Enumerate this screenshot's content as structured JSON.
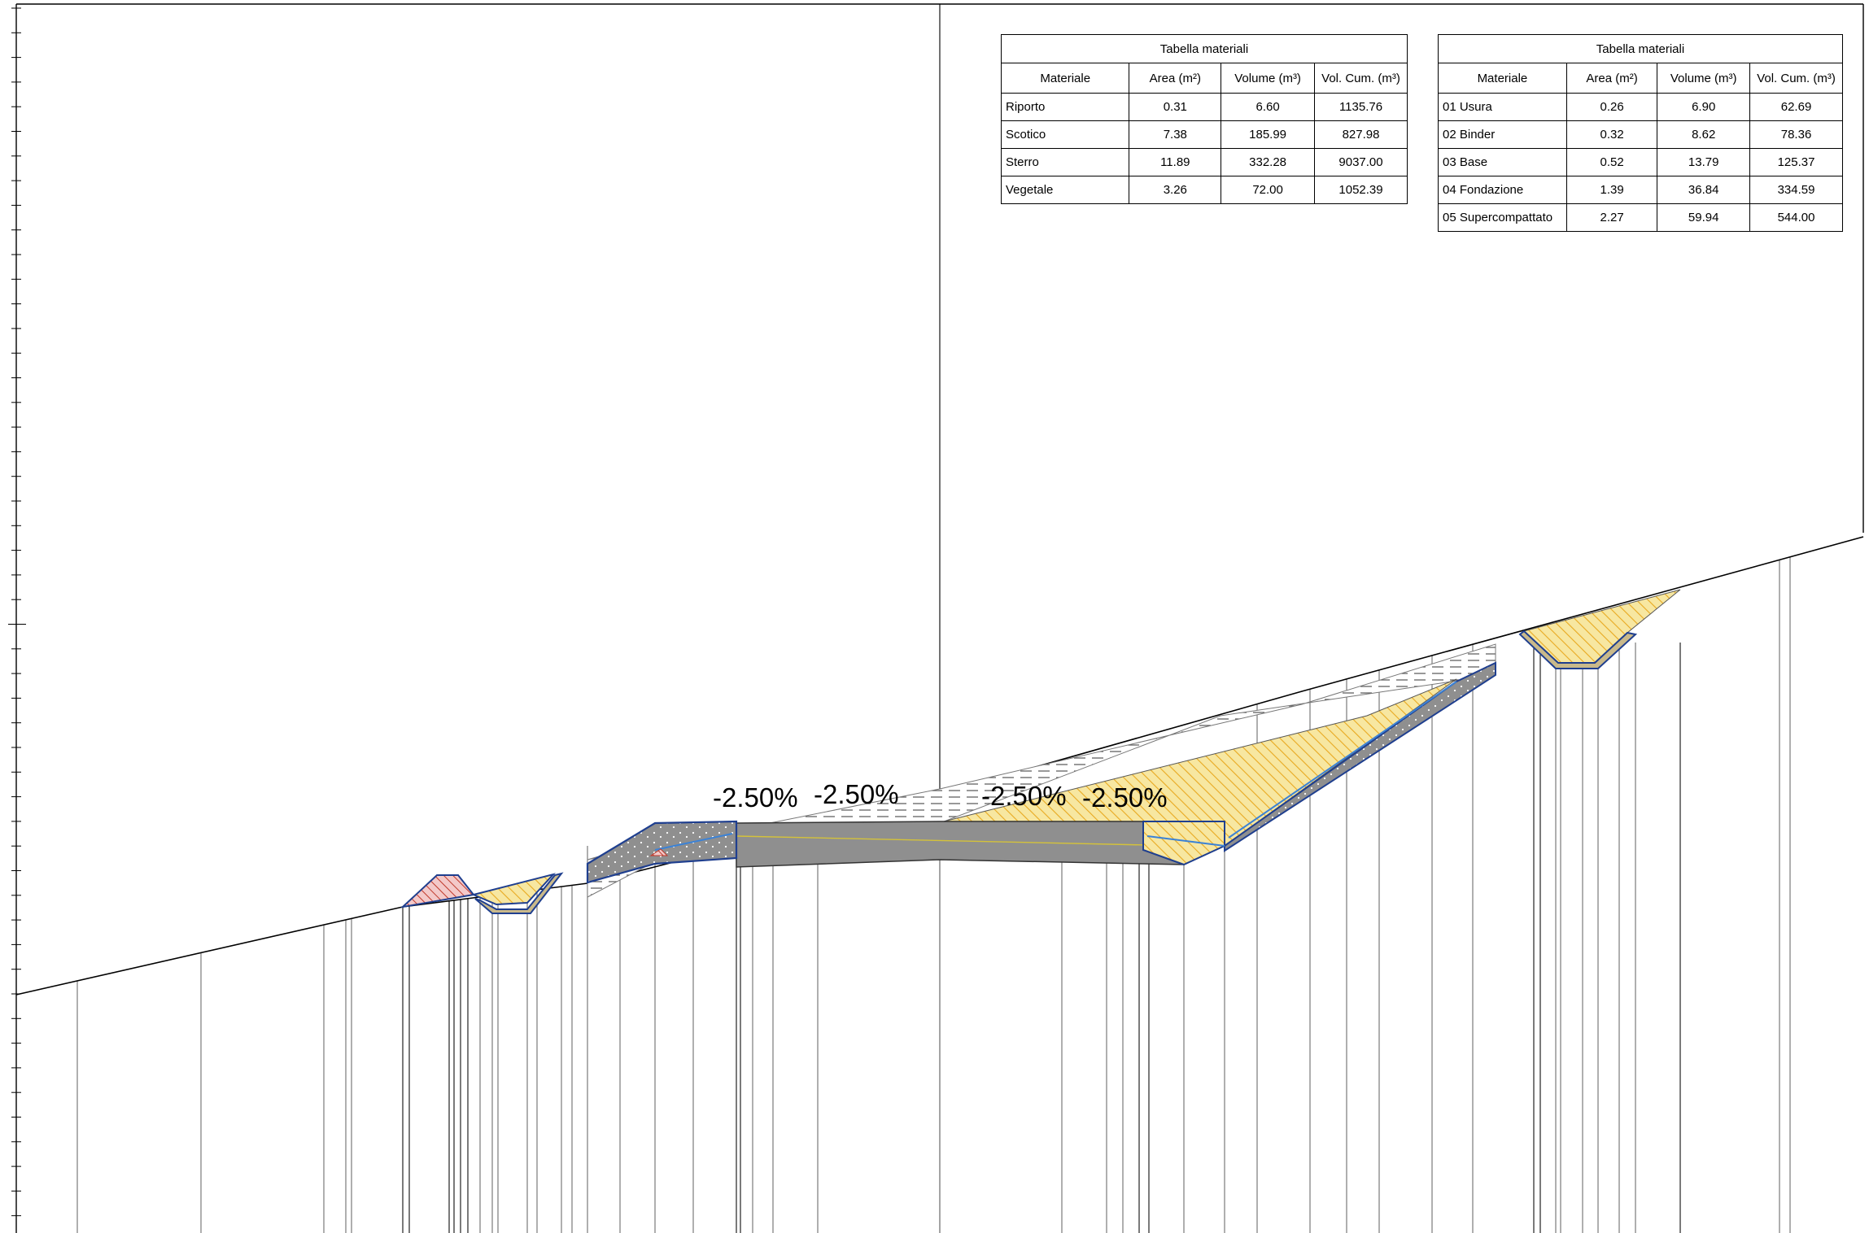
{
  "slope_labels": [
    "-2.50%",
    "-2.50%",
    "-2.50%",
    "-2.50%"
  ],
  "colors": {
    "line": "#000000",
    "pavement": "#8f8f8f",
    "yellow_fill": "#f7e7a1",
    "yellow_hatch": "#e8a920",
    "red_fill": "#f3c9c9",
    "red_hatch": "#c0392b",
    "edge_blue": "#1f3f8f",
    "light_blue": "#3b82d6",
    "subbase": "#c9b98a"
  },
  "tables": [
    {
      "title": "Tabella materiali",
      "headers": [
        "Materiale",
        "Area (m²)",
        "Volume (m³)",
        "Vol. Cum. (m³)"
      ],
      "rows": [
        {
          "materiale": "Riporto",
          "area": "0.31",
          "volume": "6.60",
          "vol_cum": "1135.76"
        },
        {
          "materiale": "Scotico",
          "area": "7.38",
          "volume": "185.99",
          "vol_cum": "827.98"
        },
        {
          "materiale": "Sterro",
          "area": "11.89",
          "volume": "332.28",
          "vol_cum": "9037.00"
        },
        {
          "materiale": "Vegetale",
          "area": "3.26",
          "volume": "72.00",
          "vol_cum": "1052.39"
        }
      ]
    },
    {
      "title": "Tabella materiali",
      "headers": [
        "Materiale",
        "Area (m²)",
        "Volume (m³)",
        "Vol. Cum. (m³)"
      ],
      "rows": [
        {
          "materiale": "01 Usura",
          "area": "0.26",
          "volume": "6.90",
          "vol_cum": "62.69"
        },
        {
          "materiale": "02 Binder",
          "area": "0.32",
          "volume": "8.62",
          "vol_cum": "78.36"
        },
        {
          "materiale": "03 Base",
          "area": "0.52",
          "volume": "13.79",
          "vol_cum": "125.37"
        },
        {
          "materiale": "04 Fondazione",
          "area": "1.39",
          "volume": "36.84",
          "vol_cum": "334.59"
        },
        {
          "materiale": "05 Supercompattato",
          "area": "2.27",
          "volume": "59.94",
          "vol_cum": "544.00"
        }
      ]
    }
  ]
}
